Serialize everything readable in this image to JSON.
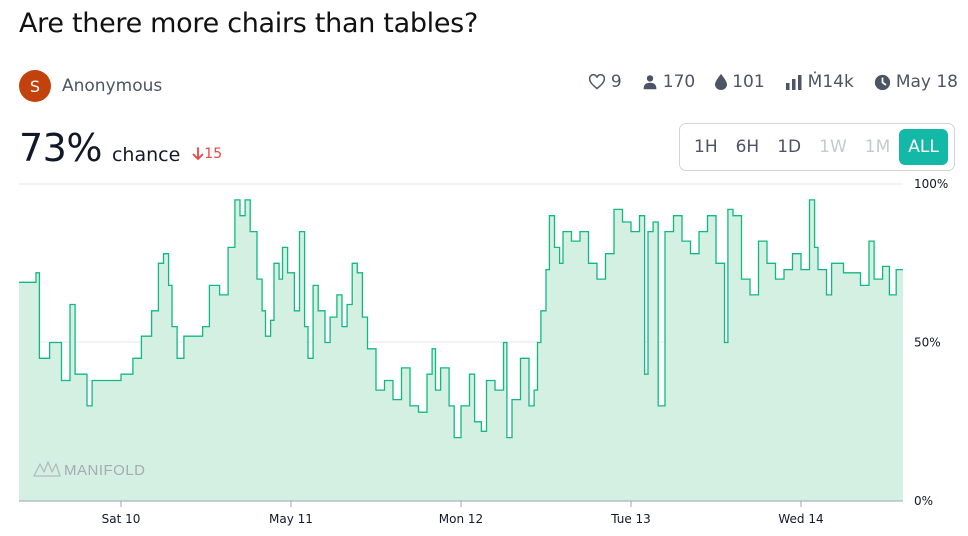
{
  "question": {
    "title": "Are there more chairs than tables?"
  },
  "author": {
    "initial": "S",
    "name": "Anonymous"
  },
  "stats": {
    "likes": "9",
    "traders": "170",
    "liquidity": "101",
    "volume": "Ṁ14k",
    "close_date": "May 18"
  },
  "probability": {
    "value": "73%",
    "label": "chance",
    "change": "15"
  },
  "time_range": {
    "buttons": [
      {
        "label": "1H",
        "state": "enabled"
      },
      {
        "label": "6H",
        "state": "enabled"
      },
      {
        "label": "1D",
        "state": "enabled"
      },
      {
        "label": "1W",
        "state": "disabled"
      },
      {
        "label": "1M",
        "state": "disabled"
      },
      {
        "label": "ALL",
        "state": "active"
      }
    ]
  },
  "watermark": "MANIFOLD",
  "colors": {
    "line": "#11b981",
    "fill": "#d3f0e3",
    "accent": "#14b8a6",
    "down": "#ef4444",
    "avatar": "#c2410c"
  },
  "icons": [
    "heart-icon",
    "user-icon",
    "droplet-icon",
    "bar-chart-icon",
    "clock-icon",
    "arrow-down-icon",
    "manifold-logo-icon"
  ],
  "chart_data": {
    "type": "line",
    "interpolation": "step",
    "ylim": [
      0,
      100
    ],
    "y_ticks": [
      {
        "value": 0,
        "label": "0%"
      },
      {
        "value": 50,
        "label": "50%"
      },
      {
        "value": 100,
        "label": "100%"
      }
    ],
    "x_ticks": [
      {
        "label": "Sat 10",
        "value": 0.6
      },
      {
        "label": "May 11",
        "value": 1.6
      },
      {
        "label": "Mon 12",
        "value": 2.6
      },
      {
        "label": "Tue 13",
        "value": 3.6
      },
      {
        "label": "Wed 14",
        "value": 4.6
      }
    ],
    "xlim": [
      0,
      5.2
    ],
    "grid": "horizontal",
    "series": [
      {
        "values": [
          [
            0.0,
            69
          ],
          [
            0.1,
            72
          ],
          [
            0.12,
            45
          ],
          [
            0.18,
            50
          ],
          [
            0.25,
            38
          ],
          [
            0.3,
            62
          ],
          [
            0.33,
            40
          ],
          [
            0.4,
            30
          ],
          [
            0.43,
            38
          ],
          [
            0.55,
            38
          ],
          [
            0.6,
            40
          ],
          [
            0.67,
            45
          ],
          [
            0.72,
            52
          ],
          [
            0.78,
            60
          ],
          [
            0.82,
            75
          ],
          [
            0.85,
            78
          ],
          [
            0.88,
            68
          ],
          [
            0.9,
            55
          ],
          [
            0.93,
            45
          ],
          [
            0.97,
            52
          ],
          [
            1.02,
            52
          ],
          [
            1.08,
            55
          ],
          [
            1.12,
            68
          ],
          [
            1.18,
            65
          ],
          [
            1.23,
            80
          ],
          [
            1.27,
            95
          ],
          [
            1.3,
            90
          ],
          [
            1.33,
            95
          ],
          [
            1.36,
            85
          ],
          [
            1.4,
            70
          ],
          [
            1.43,
            60
          ],
          [
            1.45,
            52
          ],
          [
            1.48,
            57
          ],
          [
            1.5,
            75
          ],
          [
            1.53,
            70
          ],
          [
            1.55,
            80
          ],
          [
            1.58,
            72
          ],
          [
            1.62,
            60
          ],
          [
            1.65,
            85
          ],
          [
            1.68,
            55
          ],
          [
            1.7,
            45
          ],
          [
            1.73,
            68
          ],
          [
            1.76,
            60
          ],
          [
            1.8,
            50
          ],
          [
            1.83,
            58
          ],
          [
            1.87,
            65
          ],
          [
            1.9,
            55
          ],
          [
            1.93,
            62
          ],
          [
            1.96,
            75
          ],
          [
            1.99,
            72
          ],
          [
            2.02,
            58
          ],
          [
            2.05,
            48
          ],
          [
            2.08,
            48
          ],
          [
            2.1,
            35
          ],
          [
            2.15,
            38
          ],
          [
            2.2,
            32
          ],
          [
            2.25,
            42
          ],
          [
            2.3,
            30
          ],
          [
            2.35,
            28
          ],
          [
            2.4,
            40
          ],
          [
            2.43,
            48
          ],
          [
            2.45,
            35
          ],
          [
            2.48,
            42
          ],
          [
            2.53,
            30
          ],
          [
            2.56,
            20
          ],
          [
            2.6,
            30
          ],
          [
            2.65,
            40
          ],
          [
            2.68,
            25
          ],
          [
            2.72,
            22
          ],
          [
            2.75,
            38
          ],
          [
            2.8,
            35
          ],
          [
            2.85,
            50
          ],
          [
            2.87,
            20
          ],
          [
            2.9,
            32
          ],
          [
            2.95,
            45
          ],
          [
            3.0,
            30
          ],
          [
            3.03,
            35
          ],
          [
            3.05,
            50
          ],
          [
            3.07,
            60
          ],
          [
            3.1,
            73
          ],
          [
            3.12,
            90
          ],
          [
            3.15,
            80
          ],
          [
            3.18,
            75
          ],
          [
            3.2,
            85
          ],
          [
            3.25,
            82
          ],
          [
            3.3,
            85
          ],
          [
            3.35,
            75
          ],
          [
            3.4,
            70
          ],
          [
            3.45,
            78
          ],
          [
            3.5,
            92
          ],
          [
            3.55,
            88
          ],
          [
            3.6,
            85
          ],
          [
            3.65,
            90
          ],
          [
            3.68,
            40
          ],
          [
            3.7,
            85
          ],
          [
            3.73,
            88
          ],
          [
            3.76,
            30
          ],
          [
            3.8,
            85
          ],
          [
            3.85,
            90
          ],
          [
            3.9,
            82
          ],
          [
            3.95,
            78
          ],
          [
            4.0,
            85
          ],
          [
            4.05,
            90
          ],
          [
            4.1,
            75
          ],
          [
            4.15,
            50
          ],
          [
            4.17,
            92
          ],
          [
            4.2,
            90
          ],
          [
            4.25,
            70
          ],
          [
            4.3,
            65
          ],
          [
            4.35,
            82
          ],
          [
            4.4,
            75
          ],
          [
            4.45,
            70
          ],
          [
            4.5,
            73
          ],
          [
            4.55,
            78
          ],
          [
            4.6,
            73
          ],
          [
            4.65,
            95
          ],
          [
            4.68,
            80
          ],
          [
            4.7,
            73
          ],
          [
            4.75,
            65
          ],
          [
            4.78,
            75
          ],
          [
            4.85,
            72
          ],
          [
            4.9,
            72
          ],
          [
            4.95,
            68
          ],
          [
            5.0,
            82
          ],
          [
            5.03,
            70
          ],
          [
            5.08,
            74
          ],
          [
            5.12,
            65
          ],
          [
            5.16,
            73
          ],
          [
            5.2,
            73
          ]
        ]
      }
    ]
  }
}
